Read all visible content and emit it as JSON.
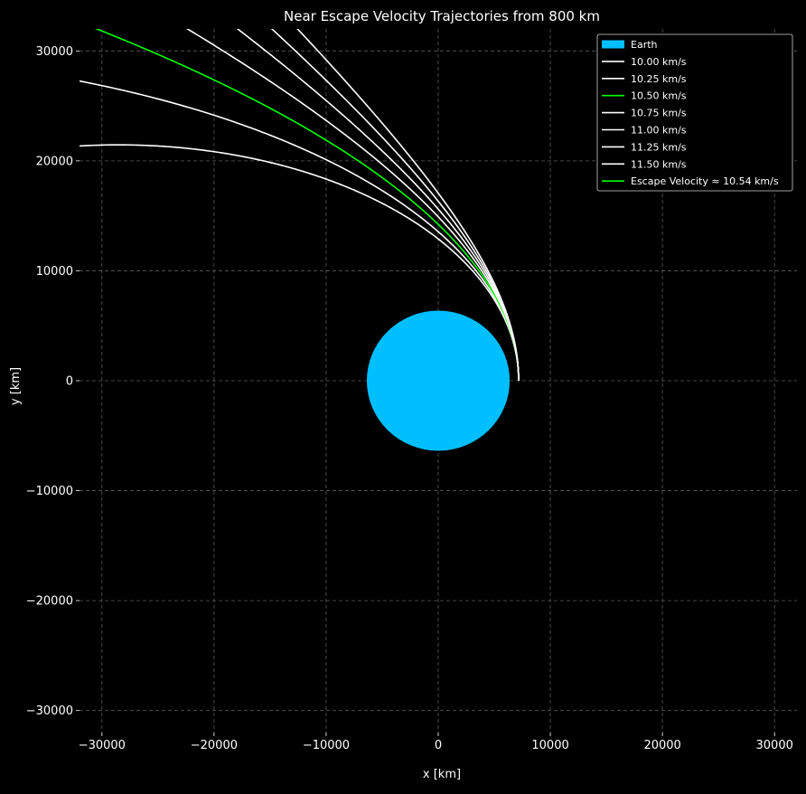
{
  "chart_data": {
    "type": "line",
    "title": "Near Escape Velocity Trajectories from 800 km",
    "xlabel": "x [km]",
    "ylabel": "y [km]",
    "xlim": [
      -32000,
      32000
    ],
    "ylim": [
      -32000,
      32000
    ],
    "xticks": [
      -30000,
      -20000,
      -10000,
      0,
      10000,
      20000,
      30000
    ],
    "yticks": [
      -30000,
      -20000,
      -10000,
      0,
      10000,
      20000,
      30000
    ],
    "xtick_labels": [
      "−30000",
      "−20000",
      "−10000",
      "0",
      "10000",
      "20000",
      "30000"
    ],
    "ytick_labels": [
      "−30000",
      "−20000",
      "−10000",
      "0",
      "10000",
      "20000",
      "30000"
    ],
    "grid": true,
    "legend_position": "top-right",
    "background_color": "#000000",
    "earth": {
      "label": "Earth",
      "center": [
        0,
        0
      ],
      "radius_km": 6371,
      "color": "#00bfff"
    },
    "start_altitude_km": 800,
    "series": [
      {
        "name": "10.00 km/s",
        "velocity": 10.0,
        "color": "#ffffff"
      },
      {
        "name": "10.25 km/s",
        "velocity": 10.25,
        "color": "#ffffff"
      },
      {
        "name": "10.50 km/s",
        "velocity": 10.5,
        "color": "#00ff00"
      },
      {
        "name": "10.75 km/s",
        "velocity": 10.75,
        "color": "#ffffff"
      },
      {
        "name": "11.00 km/s",
        "velocity": 11.0,
        "color": "#ffffff"
      },
      {
        "name": "11.25 km/s",
        "velocity": 11.25,
        "color": "#ffffff"
      },
      {
        "name": "11.50 km/s",
        "velocity": 11.5,
        "color": "#ffffff"
      }
    ],
    "legend": [
      {
        "label": "Earth",
        "kind": "patch",
        "color": "#00bfff"
      },
      {
        "label": "10.00 km/s",
        "kind": "line",
        "color": "#ffffff"
      },
      {
        "label": "10.25 km/s",
        "kind": "line",
        "color": "#ffffff"
      },
      {
        "label": "10.50 km/s",
        "kind": "line",
        "color": "#00ff00"
      },
      {
        "label": "10.75 km/s",
        "kind": "line",
        "color": "#ffffff"
      },
      {
        "label": "11.00 km/s",
        "kind": "line",
        "color": "#ffffff"
      },
      {
        "label": "11.25 km/s",
        "kind": "line",
        "color": "#ffffff"
      },
      {
        "label": "11.50 km/s",
        "kind": "line",
        "color": "#ffffff"
      },
      {
        "label": "Escape Velocity ≈ 10.54 km/s",
        "kind": "line",
        "color": "#00ff00"
      }
    ]
  }
}
